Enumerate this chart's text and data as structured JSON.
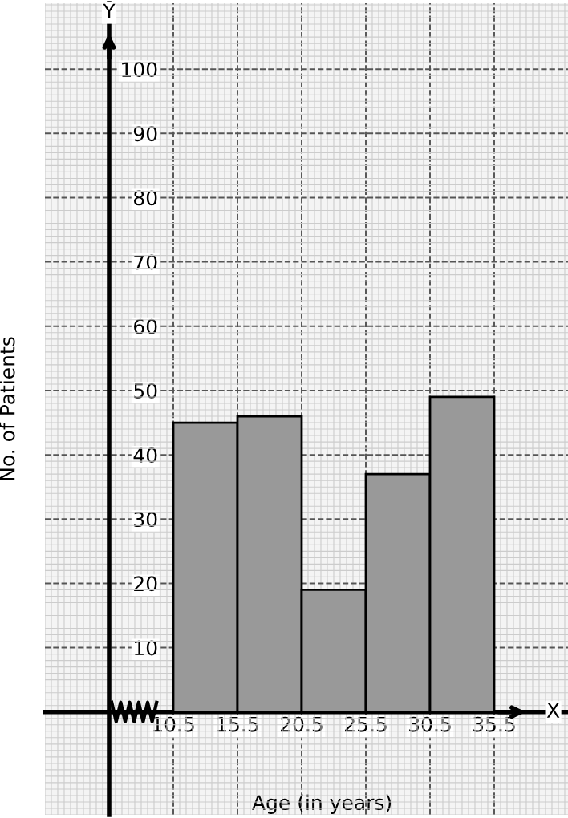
{
  "chart_data": {
    "type": "histogram",
    "xlabel": "Age (in years)",
    "ylabel": "No. of Patients",
    "bins": [
      10.5,
      15.5,
      20.5,
      25.5,
      30.5,
      35.5
    ],
    "values": [
      45,
      46,
      19,
      37,
      49
    ],
    "color": "#999999",
    "xlim": [
      0.5,
      41.25
    ],
    "ylim": [
      -16,
      110.25
    ],
    "xticks": [
      10.5,
      15.5,
      20.5,
      25.5,
      30.5,
      35.5
    ],
    "yticks": [
      10,
      20,
      30,
      40,
      50,
      60,
      70,
      80,
      90,
      100
    ],
    "grid": true,
    "annotations": [
      "Y",
      "X"
    ]
  }
}
